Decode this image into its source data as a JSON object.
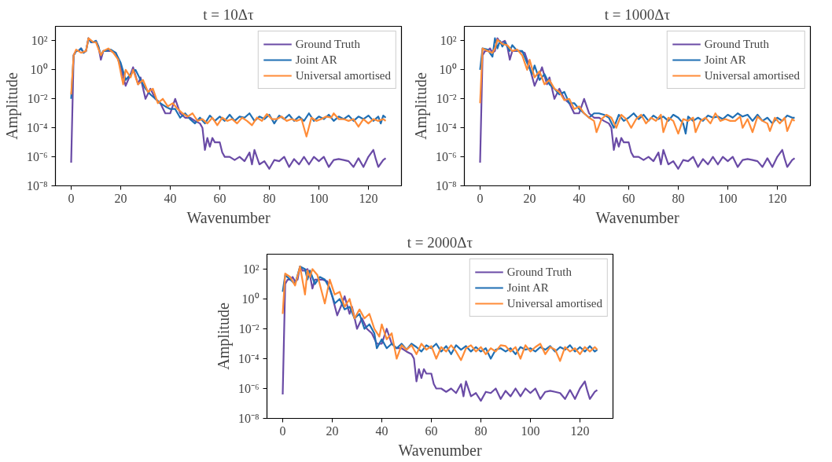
{
  "chart_data": [
    {
      "type": "line",
      "title": "t = 10Δτ",
      "xlabel": "Wavenumber",
      "ylabel": "Amplitude",
      "log": "y",
      "grid": false,
      "legend": "top right",
      "xlim": [
        -6.35,
        133.35
      ],
      "ylim": [
        1e-08,
        1000
      ],
      "xticks": [
        0,
        20,
        40,
        60,
        80,
        100,
        120
      ],
      "yticks": [
        {
          "value": 1e-08,
          "label": "10⁻⁸"
        },
        {
          "value": 1e-06,
          "label": "10⁻⁶"
        },
        {
          "value": 0.0001,
          "label": "10⁻⁴"
        },
        {
          "value": 0.01,
          "label": "10⁻²"
        },
        {
          "value": 1,
          "label": "10⁰"
        },
        {
          "value": 100,
          "label": "10²"
        }
      ],
      "series": [
        {
          "name": "Ground Truth",
          "color": "#6a4ba6",
          "x": [
            0,
            1,
            2,
            3,
            4,
            5,
            6,
            7,
            8,
            9,
            10,
            11,
            12,
            13,
            14,
            16,
            18,
            20,
            22,
            24,
            25,
            27,
            28,
            30,
            32,
            34,
            36,
            38,
            40,
            42,
            44,
            46,
            48,
            50,
            52,
            53,
            54,
            55,
            56,
            57,
            58,
            60,
            61,
            62,
            64,
            66,
            68,
            70,
            72,
            73,
            74,
            76,
            78,
            80,
            82,
            84,
            86,
            88,
            90,
            92,
            94,
            96,
            98,
            100,
            102,
            104,
            106,
            108,
            110,
            112,
            114,
            116,
            118,
            120,
            122,
            123,
            124,
            126,
            127
          ],
          "values": [
            4e-07,
            10,
            20,
            20,
            30,
            15,
            20,
            150,
            80,
            80,
            100,
            40,
            5,
            20,
            20,
            20,
            15,
            1.5,
            0.08,
            0.5,
            1.5,
            0.1,
            0.3,
            0.01,
            0.05,
            0.01,
            0.005,
            0.001,
            0.001,
            0.01,
            0.001,
            0.0005,
            0.0005,
            0.0003,
            0.0002,
            0.0001,
            3e-06,
            2e-05,
            5e-06,
            2e-05,
            1e-05,
            1e-05,
            2e-06,
            1e-06,
            1e-06,
            6e-07,
            1e-06,
            5e-07,
            2e-06,
            3e-07,
            3e-06,
            3e-07,
            5e-07,
            1.5e-07,
            6e-07,
            5e-07,
            1e-06,
            2e-07,
            7e-07,
            3e-07,
            1e-06,
            3e-07,
            1e-06,
            5e-07,
            1e-06,
            2e-07,
            6e-07,
            7e-07,
            6e-07,
            5e-07,
            2e-07,
            8e-07,
            2e-07,
            1e-06,
            3e-06,
            7e-07,
            2e-07,
            6e-07,
            8e-07
          ]
        },
        {
          "name": "Joint AR",
          "color": "#1f6fb4",
          "x": [
            0,
            1,
            2,
            3,
            4,
            5,
            6,
            7,
            8,
            9,
            10,
            11,
            12,
            13,
            14,
            16,
            18,
            20,
            22,
            24,
            26,
            28,
            30,
            32,
            34,
            36,
            38,
            40,
            42,
            44,
            46,
            48,
            50,
            52,
            54,
            56,
            58,
            60,
            62,
            64,
            66,
            68,
            70,
            72,
            74,
            76,
            78,
            80,
            82,
            84,
            86,
            88,
            90,
            92,
            94,
            96,
            98,
            100,
            102,
            104,
            106,
            108,
            110,
            112,
            114,
            116,
            118,
            120,
            122,
            124,
            125,
            126,
            127
          ],
          "values": [
            0.01,
            10,
            20,
            20,
            30,
            15,
            20,
            150,
            80,
            80,
            100,
            40,
            10,
            20,
            20,
            25,
            15,
            3,
            0.2,
            0.5,
            1,
            0.2,
            0.05,
            0.02,
            0.01,
            0.005,
            0.003,
            0.002,
            0.002,
            0.0005,
            0.001,
            0.0004,
            0.0002,
            0.0005,
            0.0002,
            0.0007,
            0.0003,
            0.0006,
            0.0003,
            0.0008,
            0.0003,
            0.0006,
            0.0005,
            0.001,
            0.0003,
            0.0006,
            0.0004,
            0.0008,
            0.0002,
            0.0007,
            0.0004,
            0.0008,
            0.0003,
            0.0006,
            0.0003,
            0.001,
            0.0003,
            0.0006,
            0.0004,
            0.0008,
            0.0003,
            0.0006,
            0.0004,
            0.0007,
            0.0003,
            0.0006,
            0.0004,
            0.0007,
            0.0003,
            0.0006,
            0.0002,
            0.0007,
            0.0005
          ]
        },
        {
          "name": "Universal amortised",
          "color": "#ff8c38",
          "x": [
            0,
            1,
            2,
            4,
            6,
            7,
            9,
            10,
            12,
            13,
            15,
            17,
            19,
            21,
            22,
            24,
            25,
            27,
            29,
            31,
            33,
            35,
            37,
            39,
            41,
            43,
            45,
            47,
            49,
            51,
            53,
            55,
            57,
            59,
            61,
            63,
            65,
            67,
            69,
            71,
            73,
            75,
            77,
            79,
            81,
            83,
            85,
            87,
            89,
            91,
            93,
            95,
            97,
            99,
            101,
            103,
            105,
            106,
            108,
            110,
            112,
            114,
            116,
            118,
            120,
            122,
            124,
            126,
            127
          ],
          "values": [
            0.02,
            10,
            25,
            15,
            20,
            150,
            80,
            80,
            10,
            20,
            30,
            15,
            5,
            0.1,
            1,
            0.3,
            1,
            0.1,
            0.2,
            0.03,
            0.05,
            0.005,
            0.01,
            0.003,
            0.005,
            0.002,
            0.001,
            0.0006,
            0.001,
            0.0003,
            0.0004,
            0.0002,
            0.0005,
            0.00015,
            0.0005,
            0.0003,
            0.0004,
            0.0002,
            0.0005,
            0.0003,
            0.00015,
            0.0005,
            0.0003,
            0.0009,
            0.0004,
            0.0004,
            0.0006,
            0.0003,
            0.0004,
            0.0003,
            0.0004,
            2.5e-05,
            0.0005,
            0.0003,
            0.0004,
            0.0006,
            0.0005,
            0.001,
            0.0004,
            0.0004,
            0.0003,
            0.0004,
            0.00012,
            0.0004,
            0.0002,
            0.0004,
            0.0003,
            0.0004,
            0.0003
          ]
        }
      ]
    },
    {
      "type": "line",
      "title": "t = 1000Δτ",
      "xlabel": "Wavenumber",
      "ylabel": "Amplitude",
      "log": "y",
      "grid": false,
      "legend": "top right",
      "xlim": [
        -6.35,
        133.35
      ],
      "ylim": [
        1e-08,
        1000
      ],
      "xticks": [
        0,
        20,
        40,
        60,
        80,
        100,
        120
      ],
      "yticks": [
        {
          "value": 1e-08,
          "label": "10⁻⁸"
        },
        {
          "value": 1e-06,
          "label": "10⁻⁶"
        },
        {
          "value": 0.0001,
          "label": "10⁻⁴"
        },
        {
          "value": 0.01,
          "label": "10⁻²"
        },
        {
          "value": 1,
          "label": "10⁰"
        },
        {
          "value": 100,
          "label": "10²"
        }
      ],
      "series": [
        {
          "name": "Ground Truth",
          "color": "#6a4ba6",
          "x": [
            0,
            1,
            2,
            3,
            4,
            5,
            6,
            7,
            8,
            9,
            10,
            11,
            12,
            13,
            14,
            16,
            18,
            20,
            22,
            24,
            25,
            27,
            28,
            30,
            32,
            34,
            36,
            38,
            40,
            42,
            44,
            46,
            48,
            50,
            52,
            53,
            54,
            55,
            56,
            57,
            58,
            60,
            61,
            62,
            64,
            66,
            68,
            70,
            72,
            73,
            74,
            76,
            78,
            80,
            82,
            84,
            86,
            88,
            90,
            92,
            94,
            96,
            98,
            100,
            102,
            104,
            106,
            108,
            110,
            112,
            114,
            116,
            118,
            120,
            122,
            123,
            124,
            126,
            127
          ],
          "values": [
            4e-07,
            10,
            20,
            20,
            30,
            15,
            20,
            150,
            80,
            80,
            100,
            40,
            5,
            20,
            20,
            20,
            15,
            1.5,
            0.08,
            0.5,
            1.5,
            0.1,
            0.3,
            0.01,
            0.05,
            0.01,
            0.005,
            0.001,
            0.001,
            0.01,
            0.001,
            0.0005,
            0.0005,
            0.0003,
            0.0002,
            0.0001,
            3e-06,
            2e-05,
            5e-06,
            2e-05,
            1e-05,
            1e-05,
            2e-06,
            1e-06,
            1e-06,
            6e-07,
            1e-06,
            5e-07,
            2e-06,
            3e-07,
            3e-06,
            3e-07,
            5e-07,
            1.5e-07,
            6e-07,
            5e-07,
            1e-06,
            2e-07,
            7e-07,
            3e-07,
            1e-06,
            3e-07,
            1e-06,
            5e-07,
            1e-06,
            2e-07,
            6e-07,
            7e-07,
            6e-07,
            5e-07,
            2e-07,
            8e-07,
            2e-07,
            1e-06,
            3e-06,
            7e-07,
            2e-07,
            6e-07,
            8e-07
          ]
        },
        {
          "name": "Joint AR",
          "color": "#1f6fb4",
          "x": [
            0,
            1,
            3,
            5,
            6,
            7,
            8,
            9,
            10,
            12,
            13,
            15,
            17,
            19,
            21,
            22,
            24,
            26,
            28,
            30,
            32,
            34,
            36,
            38,
            40,
            42,
            44,
            46,
            48,
            50,
            52,
            54,
            56,
            58,
            60,
            62,
            64,
            66,
            68,
            70,
            72,
            74,
            76,
            78,
            80,
            82,
            83,
            84,
            86,
            88,
            90,
            92,
            94,
            96,
            98,
            100,
            102,
            104,
            106,
            108,
            110,
            112,
            114,
            116,
            118,
            120,
            122,
            124,
            126,
            127
          ],
          "values": [
            1,
            30,
            25,
            8,
            150,
            30,
            100,
            40,
            80,
            20,
            50,
            20,
            20,
            3,
            0.5,
            2,
            0.2,
            0.5,
            0.1,
            0.05,
            0.02,
            0.03,
            0.005,
            0.005,
            0.002,
            0.001,
            0.0005,
            0.001,
            0.001,
            0.0008,
            0.0005,
            0.0001,
            0.0008,
            0.0003,
            0.0005,
            0.001,
            0.0004,
            0.0008,
            0.0003,
            0.0007,
            0.0004,
            0.0006,
            0.0003,
            0.0008,
            0.0005,
            0.0002,
            4e-05,
            0.0006,
            0.0003,
            0.0005,
            0.0003,
            0.0007,
            0.0005,
            0.0006,
            0.0004,
            0.0008,
            0.0005,
            0.001,
            0.0006,
            0.0008,
            0.0003,
            0.0008,
            0.0003,
            0.0005,
            0.0002,
            0.0005,
            0.0003,
            0.0007,
            0.0005,
            0.0005
          ]
        },
        {
          "name": "Universal amortised",
          "color": "#ff8c38",
          "x": [
            0,
            1,
            3,
            5,
            6,
            7,
            9,
            11,
            13,
            15,
            17,
            19,
            20,
            22,
            24,
            26,
            28,
            30,
            32,
            34,
            36,
            38,
            40,
            42,
            44,
            46,
            47,
            49,
            51,
            53,
            55,
            57,
            59,
            61,
            63,
            65,
            67,
            69,
            71,
            73,
            74,
            76,
            78,
            80,
            82,
            84,
            86,
            87,
            89,
            91,
            93,
            95,
            97,
            99,
            101,
            103,
            105,
            106,
            108,
            110,
            112,
            114,
            116,
            117,
            119,
            121,
            123,
            124,
            126,
            127
          ],
          "values": [
            0.005,
            30,
            20,
            15,
            30,
            120,
            60,
            50,
            20,
            25,
            10,
            1,
            5,
            0.3,
            0.8,
            0.1,
            0.2,
            0.05,
            0.03,
            0.008,
            0.01,
            0.002,
            0.003,
            0.001,
            0.0005,
            0.0003,
            5e-05,
            0.0004,
            0.0008,
            0.0005,
            0.0001,
            0.0008,
            0.0004,
            0.0001,
            0.0004,
            0.0008,
            0.0002,
            0.0005,
            0.0003,
            0.0008,
            5e-05,
            0.0005,
            0.0003,
            4e-05,
            0.0004,
            0.0003,
            0.0005,
            5e-05,
            0.0003,
            0.0005,
            0.0002,
            0.001,
            0.0003,
            0.0004,
            0.0003,
            0.0003,
            0.0006,
            0.0001,
            0.0004,
            5e-05,
            0.0006,
            0.0003,
            0.0002,
            6e-05,
            0.0005,
            0.0002,
            0.0005,
            6e-05,
            0.0004,
            0.0003
          ]
        }
      ]
    },
    {
      "type": "line",
      "title": "t = 2000Δτ",
      "xlabel": "Wavenumber",
      "ylabel": "Amplitude",
      "log": "y",
      "grid": false,
      "legend": "top right",
      "xlim": [
        -6.35,
        133.35
      ],
      "ylim": [
        1e-08,
        1000
      ],
      "xticks": [
        0,
        20,
        40,
        60,
        80,
        100,
        120
      ],
      "yticks": [
        {
          "value": 1e-08,
          "label": "10⁻⁸"
        },
        {
          "value": 1e-06,
          "label": "10⁻⁶"
        },
        {
          "value": 0.0001,
          "label": "10⁻⁴"
        },
        {
          "value": 0.01,
          "label": "10⁻²"
        },
        {
          "value": 1,
          "label": "10⁰"
        },
        {
          "value": 100,
          "label": "10²"
        }
      ],
      "series": [
        {
          "name": "Ground Truth",
          "color": "#6a4ba6",
          "x": [
            0,
            1,
            2,
            3,
            4,
            5,
            6,
            7,
            8,
            9,
            10,
            11,
            12,
            13,
            14,
            16,
            18,
            20,
            22,
            24,
            25,
            27,
            28,
            30,
            32,
            34,
            36,
            38,
            40,
            42,
            44,
            46,
            48,
            50,
            52,
            53,
            54,
            55,
            56,
            57,
            58,
            60,
            61,
            62,
            64,
            66,
            68,
            70,
            72,
            73,
            74,
            76,
            78,
            80,
            82,
            84,
            86,
            88,
            90,
            92,
            94,
            96,
            98,
            100,
            102,
            104,
            106,
            108,
            110,
            112,
            114,
            116,
            118,
            120,
            122,
            123,
            124,
            126,
            127
          ],
          "values": [
            4e-07,
            10,
            20,
            20,
            30,
            15,
            20,
            150,
            80,
            80,
            100,
            40,
            5,
            20,
            20,
            20,
            15,
            1.5,
            0.08,
            0.5,
            1.5,
            0.1,
            0.3,
            0.01,
            0.05,
            0.01,
            0.005,
            0.001,
            0.001,
            0.01,
            0.001,
            0.0005,
            0.0005,
            0.0003,
            0.0002,
            0.0001,
            3e-06,
            2e-05,
            5e-06,
            2e-05,
            1e-05,
            1e-05,
            2e-06,
            1e-06,
            1e-06,
            6e-07,
            1e-06,
            5e-07,
            2e-06,
            3e-07,
            3e-06,
            3e-07,
            5e-07,
            1.5e-07,
            6e-07,
            5e-07,
            1e-06,
            2e-07,
            7e-07,
            3e-07,
            1e-06,
            3e-07,
            1e-06,
            5e-07,
            1e-06,
            2e-07,
            6e-07,
            7e-07,
            6e-07,
            5e-07,
            2e-07,
            8e-07,
            2e-07,
            1e-06,
            3e-06,
            7e-07,
            2e-07,
            6e-07,
            8e-07
          ]
        },
        {
          "name": "Joint AR",
          "color": "#1f6fb4",
          "x": [
            0,
            1,
            3,
            5,
            7,
            9,
            10,
            11,
            13,
            15,
            17,
            19,
            21,
            23,
            25,
            27,
            29,
            31,
            33,
            35,
            37,
            38,
            40,
            42,
            44,
            46,
            48,
            50,
            52,
            54,
            56,
            58,
            60,
            62,
            64,
            66,
            68,
            70,
            72,
            74,
            76,
            78,
            80,
            82,
            84,
            86,
            88,
            90,
            92,
            94,
            96,
            98,
            100,
            102,
            104,
            106,
            108,
            110,
            112,
            114,
            116,
            118,
            120,
            122,
            124,
            126,
            127
          ],
          "values": [
            3,
            40,
            20,
            10,
            150,
            100,
            20,
            80,
            10,
            30,
            20,
            5,
            0.5,
            1,
            0.2,
            0.3,
            0.05,
            0.1,
            0.01,
            0.02,
            0.005,
            0.0005,
            0.002,
            0.0005,
            0.001,
            0.0005,
            0.001,
            0.0004,
            0.001,
            0.0006,
            0.0003,
            0.0008,
            0.0005,
            0.001,
            0.0003,
            0.0007,
            0.0002,
            0.0008,
            0.0004,
            0.0007,
            0.0003,
            0.0006,
            0.0003,
            0.0005,
            0.0001,
            0.0004,
            0.0005,
            0.0003,
            0.0005,
            0.0002,
            0.0006,
            0.0004,
            0.0005,
            0.0003,
            0.0006,
            0.0004,
            0.0007,
            0.0003,
            0.0006,
            0.0004,
            0.0008,
            0.0003,
            0.0006,
            0.0003,
            0.0007,
            0.0003,
            0.0004
          ]
        },
        {
          "name": "Universal amortised",
          "color": "#ff8c38",
          "x": [
            0,
            1,
            3,
            5,
            7,
            9,
            10,
            11,
            12,
            14,
            17,
            19,
            21,
            23,
            25,
            27,
            29,
            31,
            33,
            35,
            37,
            39,
            40,
            42,
            44,
            46,
            48,
            50,
            52,
            54,
            56,
            58,
            60,
            62,
            64,
            66,
            68,
            70,
            72,
            74,
            76,
            78,
            80,
            82,
            84,
            86,
            88,
            90,
            92,
            94,
            96,
            98,
            100,
            102,
            104,
            106,
            108,
            110,
            112,
            114,
            116,
            118,
            120,
            122,
            124,
            126,
            127
          ],
          "values": [
            0.1,
            50,
            30,
            8,
            150,
            2,
            80,
            30,
            100,
            40,
            0.5,
            20,
            2,
            3,
            0.3,
            1,
            0.05,
            0.2,
            0.05,
            0.1,
            0.01,
            0.003,
            0.02,
            0.002,
            0.005,
            0.0001,
            0.0008,
            0.0004,
            0.0008,
            0.0002,
            0.001,
            0.0004,
            0.0007,
            0.0001,
            0.0006,
            0.0003,
            0.0008,
            0.0003,
            8e-05,
            0.0005,
            0.0008,
            0.0003,
            0.0006,
            0.0002,
            0.0005,
            0.0003,
            0.0008,
            0.0007,
            0.0003,
            0.0006,
            0.0001,
            0.0008,
            0.0003,
            0.0006,
            0.001,
            0.0002,
            0.0006,
            0.0004,
            7e-05,
            0.0006,
            0.0003,
            0.0005,
            0.0002,
            0.0006,
            0.0003,
            0.0006,
            0.0004
          ]
        }
      ]
    }
  ]
}
